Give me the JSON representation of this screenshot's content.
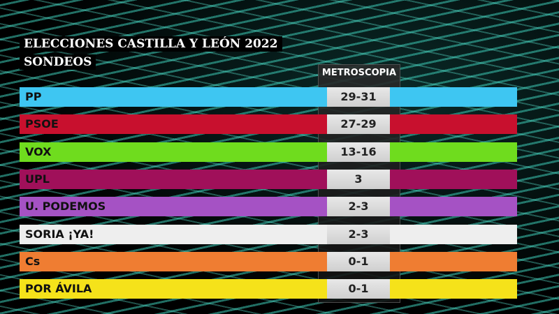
{
  "title": "ELECCIONES CASTILLA Y LEÓN 2022",
  "subtitle": "SONDEOS",
  "chart_data": {
    "type": "table",
    "columns": [
      "METROSCOPIA"
    ],
    "rows": [
      {
        "party": "PP",
        "value": "29-31",
        "color": "#3ec6f2"
      },
      {
        "party": "PSOE",
        "value": "27-29",
        "color": "#c8102e"
      },
      {
        "party": "VOX",
        "value": "13-16",
        "color": "#6fdc1e"
      },
      {
        "party": "UPL",
        "value": "3",
        "color": "#a0105a"
      },
      {
        "party": "U. PODEMOS",
        "value": "2-3",
        "color": "#a552c4"
      },
      {
        "party": "SORIA ¡YA!",
        "value": "2-3",
        "color": "#eeeeee"
      },
      {
        "party": "Cs",
        "value": "0-1",
        "color": "#ef7d32"
      },
      {
        "party": "POR ÁVILA",
        "value": "0-1",
        "color": "#f5e21a"
      }
    ]
  }
}
